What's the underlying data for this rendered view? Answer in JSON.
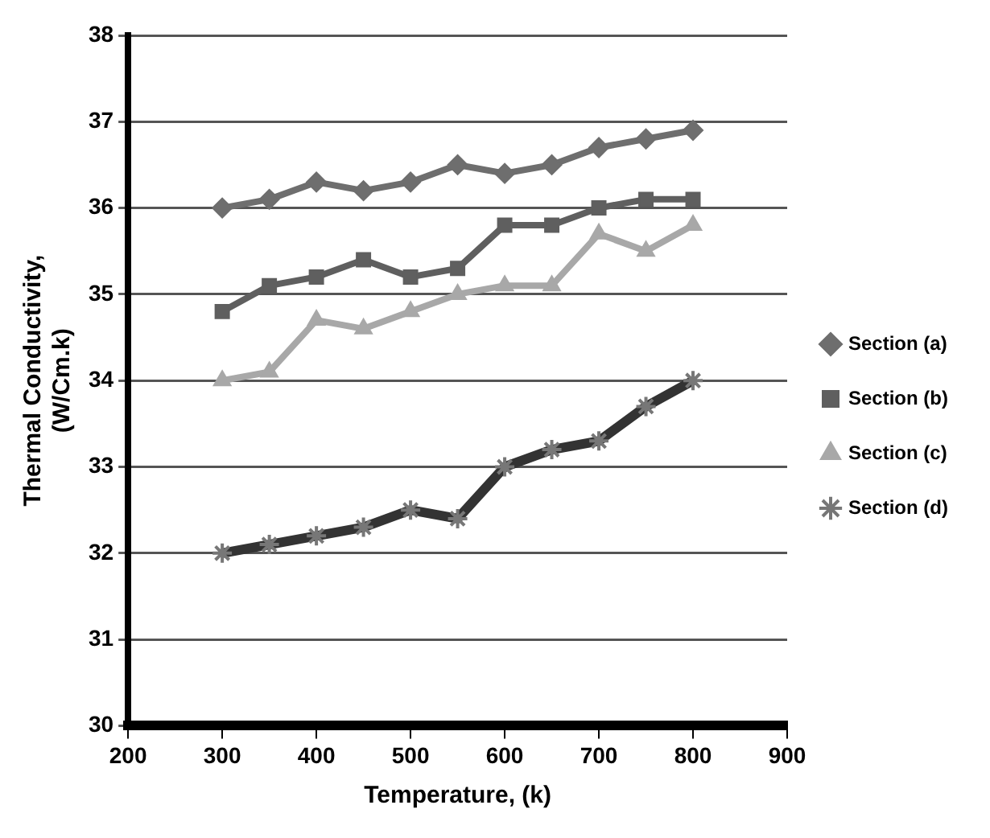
{
  "chart_data": {
    "type": "line",
    "xlabel": "Temperature, (k)",
    "ylabel": "Thermal Conductivity,\n(W/Cm.k)",
    "x": [
      300,
      350,
      400,
      450,
      500,
      550,
      600,
      650,
      700,
      750,
      800
    ],
    "series": [
      {
        "name": "Section (a)",
        "color": "#6e6e6e",
        "marker": "diamond",
        "values": [
          36.0,
          36.1,
          36.3,
          36.2,
          36.3,
          36.5,
          36.4,
          36.5,
          36.7,
          36.8,
          36.9
        ]
      },
      {
        "name": "Section (b)",
        "color": "#5f5f5f",
        "marker": "square",
        "values": [
          34.8,
          35.1,
          35.2,
          35.4,
          35.2,
          35.3,
          35.8,
          35.8,
          36.0,
          36.1,
          36.1
        ]
      },
      {
        "name": "Section (c)",
        "color": "#a8a8a8",
        "marker": "triangle",
        "values": [
          34.0,
          34.1,
          34.7,
          34.6,
          34.8,
          35.0,
          35.1,
          35.1,
          35.7,
          35.5,
          35.8
        ]
      },
      {
        "name": "Section (d)",
        "color": "#333333",
        "marker": "cross",
        "values": [
          32.0,
          32.1,
          32.2,
          32.3,
          32.5,
          32.4,
          33.0,
          33.2,
          33.3,
          33.7,
          34.0
        ]
      }
    ],
    "xlim": [
      200,
      900
    ],
    "xticks": [
      200,
      300,
      400,
      500,
      600,
      700,
      800,
      900
    ],
    "ylim": [
      30,
      38
    ],
    "yticks": [
      30,
      31,
      32,
      33,
      34,
      35,
      36,
      37,
      38
    ],
    "grid": "y",
    "legend": "right",
    "line_style": "solid"
  }
}
